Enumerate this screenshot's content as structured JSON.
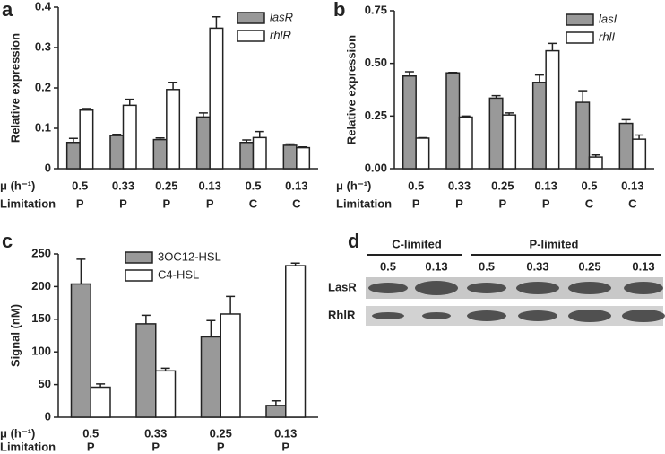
{
  "chart_data": [
    {
      "type": "bar",
      "panel": "a",
      "ylabel": "Relative expression",
      "row_labels": [
        "μ (h⁻¹)",
        "Limitation"
      ],
      "categories": [
        "0.5",
        "0.33",
        "0.25",
        "0.13",
        "0.5",
        "0.13"
      ],
      "categories2": [
        "P",
        "P",
        "P",
        "P",
        "C",
        "C"
      ],
      "series": [
        {
          "name": "lasR",
          "color": "#999999",
          "values": [
            0.065,
            0.082,
            0.072,
            0.128,
            0.065,
            0.058
          ],
          "errors": [
            0.01,
            0.003,
            0.004,
            0.01,
            0.006,
            0.003
          ]
        },
        {
          "name": "rhlR",
          "color": "#ffffff",
          "values": [
            0.145,
            0.157,
            0.196,
            0.348,
            0.077,
            0.052
          ],
          "errors": [
            0.004,
            0.015,
            0.018,
            0.028,
            0.015,
            0.002
          ]
        }
      ],
      "ylim": [
        0,
        0.4
      ],
      "yticks": [
        0,
        0.1,
        0.2,
        0.3,
        0.4
      ]
    },
    {
      "type": "bar",
      "panel": "b",
      "ylabel": "Relative expression",
      "row_labels": [
        "μ (h⁻¹)",
        "Limitation"
      ],
      "categories": [
        "0.5",
        "0.33",
        "0.25",
        "0.13",
        "0.5",
        "0.13"
      ],
      "categories2": [
        "P",
        "P",
        "P",
        "P",
        "C",
        "C"
      ],
      "series": [
        {
          "name": "lasI",
          "color": "#999999",
          "values": [
            0.44,
            0.455,
            0.335,
            0.41,
            0.315,
            0.215
          ],
          "errors": [
            0.02,
            0.002,
            0.012,
            0.035,
            0.055,
            0.018
          ]
        },
        {
          "name": "rhlI",
          "color": "#ffffff",
          "values": [
            0.145,
            0.245,
            0.255,
            0.56,
            0.055,
            0.14
          ],
          "errors": [
            0.002,
            0.005,
            0.01,
            0.035,
            0.01,
            0.02
          ]
        }
      ],
      "ylim": [
        0,
        0.75
      ],
      "yticks": [
        {
          "value": 0,
          "label": "0.00"
        },
        0.25,
        {
          "value": 0.5,
          "label": "0.50"
        },
        0.75
      ]
    },
    {
      "type": "bar",
      "panel": "c",
      "ylabel": "Signal (nM)",
      "row_labels": [
        "μ (h⁻¹)",
        "Limitation"
      ],
      "categories": [
        "0.5",
        "0.33",
        "0.25",
        "0.13"
      ],
      "categories2": [
        "P",
        "P",
        "P",
        "P"
      ],
      "series": [
        {
          "name": "3OC12-HSL",
          "color": "#999999",
          "values": [
            204,
            143,
            123,
            18
          ],
          "errors": [
            38,
            13,
            25,
            7
          ]
        },
        {
          "name": "C4-HSL",
          "color": "#ffffff",
          "values": [
            46,
            71,
            158,
            232
          ],
          "errors": [
            5,
            4,
            27,
            4
          ]
        }
      ],
      "ylim": [
        0,
        250
      ],
      "yticks": [
        0,
        50,
        100,
        150,
        200,
        250
      ]
    }
  ],
  "blot": {
    "panel": "d",
    "groups": [
      "C-limited",
      "P-limited"
    ],
    "columns": [
      "0.5",
      "0.13",
      "0.5",
      "0.33",
      "0.25",
      "0.13"
    ],
    "rows": [
      "LasR",
      "RhlR"
    ]
  }
}
